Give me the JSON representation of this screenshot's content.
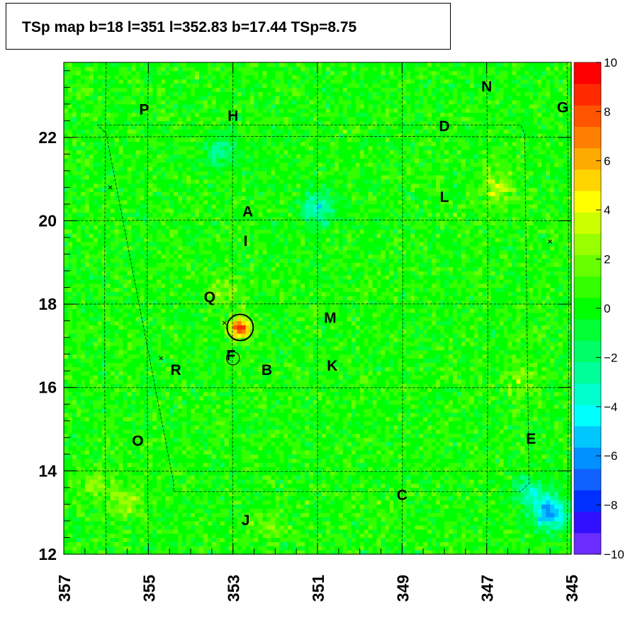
{
  "chart_data": {
    "type": "heatmap",
    "title": "TSp map b=18 l=351 l=352.83 b=17.44 TSp=8.75",
    "xlabel": "",
    "ylabel": "",
    "x_range": [
      357,
      345
    ],
    "y_range": [
      12,
      23.8
    ],
    "x_ticks": [
      "357",
      "355",
      "353",
      "351",
      "349",
      "347",
      "345"
    ],
    "y_ticks": [
      "12",
      "14",
      "16",
      "18",
      "20",
      "22"
    ],
    "colorbar": {
      "range": [
        -10,
        10
      ],
      "ticks": [
        "10",
        "8",
        "6",
        "4",
        "2",
        "0",
        "−2",
        "−4",
        "−6",
        "−8",
        "−10"
      ],
      "colors": [
        "#6a2cff",
        "#3010ff",
        "#0030ff",
        "#1060ff",
        "#0090ff",
        "#00c8ff",
        "#00ffff",
        "#00ffcc",
        "#00ff99",
        "#00ff66",
        "#00ff33",
        "#00ff00",
        "#33ff00",
        "#66ff00",
        "#99ff00",
        "#ccff00",
        "#ffff00",
        "#ffd400",
        "#ffaa00",
        "#ff7f00",
        "#ff5500",
        "#ff2a00",
        "#ff0000"
      ]
    },
    "background_level": 0.3,
    "peak": {
      "l": 352.83,
      "b": 17.44,
      "value": 8.75
    },
    "hotspots": [
      {
        "l": 346.75,
        "b": 20.8,
        "value": 3.2
      },
      {
        "l": 355.5,
        "b": 13.3,
        "value": 2.5
      },
      {
        "l": 356.3,
        "b": 13.7,
        "value": 2.0
      },
      {
        "l": 353.2,
        "b": 18.3,
        "value": 2.0
      },
      {
        "l": 346.2,
        "b": 16.2,
        "value": 2.0
      },
      {
        "l": 352.2,
        "b": 12.7,
        "value": 1.5
      }
    ],
    "coldspots": [
      {
        "l": 351.0,
        "b": 20.3,
        "value": -3.5
      },
      {
        "l": 345.5,
        "b": 13.0,
        "value": -6.0
      },
      {
        "l": 346.0,
        "b": 13.5,
        "value": -3.0
      },
      {
        "l": 353.3,
        "b": 21.7,
        "value": -2.5
      }
    ],
    "circles": [
      {
        "l": 352.83,
        "b": 17.44,
        "radius_deg": 0.5
      },
      {
        "l": 353.0,
        "b": 16.7,
        "radius_deg": 0.25
      }
    ],
    "crosses": [
      {
        "l": 355.9,
        "b": 20.8
      },
      {
        "l": 345.5,
        "b": 19.5
      },
      {
        "l": 353.2,
        "b": 17.55
      },
      {
        "l": 354.7,
        "b": 16.7
      }
    ],
    "field_labels": [
      {
        "text": "P",
        "l": 355.1,
        "b": 22.55
      },
      {
        "text": "H",
        "l": 353.0,
        "b": 22.4
      },
      {
        "text": "N",
        "l": 347.0,
        "b": 23.1
      },
      {
        "text": "G",
        "l": 345.2,
        "b": 22.6
      },
      {
        "text": "D",
        "l": 348.0,
        "b": 22.15
      },
      {
        "text": "L",
        "l": 348.0,
        "b": 20.45
      },
      {
        "text": "A",
        "l": 352.65,
        "b": 20.1
      },
      {
        "text": "I",
        "l": 352.7,
        "b": 19.4
      },
      {
        "text": "Q",
        "l": 353.55,
        "b": 18.05
      },
      {
        "text": "M",
        "l": 350.7,
        "b": 17.55
      },
      {
        "text": "F",
        "l": 353.05,
        "b": 16.65
      },
      {
        "text": "R",
        "l": 354.35,
        "b": 16.3
      },
      {
        "text": "B",
        "l": 352.2,
        "b": 16.3
      },
      {
        "text": "K",
        "l": 350.65,
        "b": 16.4
      },
      {
        "text": "O",
        "l": 355.25,
        "b": 14.6
      },
      {
        "text": "E",
        "l": 345.95,
        "b": 14.65
      },
      {
        "text": "C",
        "l": 349.0,
        "b": 13.3
      },
      {
        "text": "J",
        "l": 352.7,
        "b": 12.7
      }
    ]
  }
}
